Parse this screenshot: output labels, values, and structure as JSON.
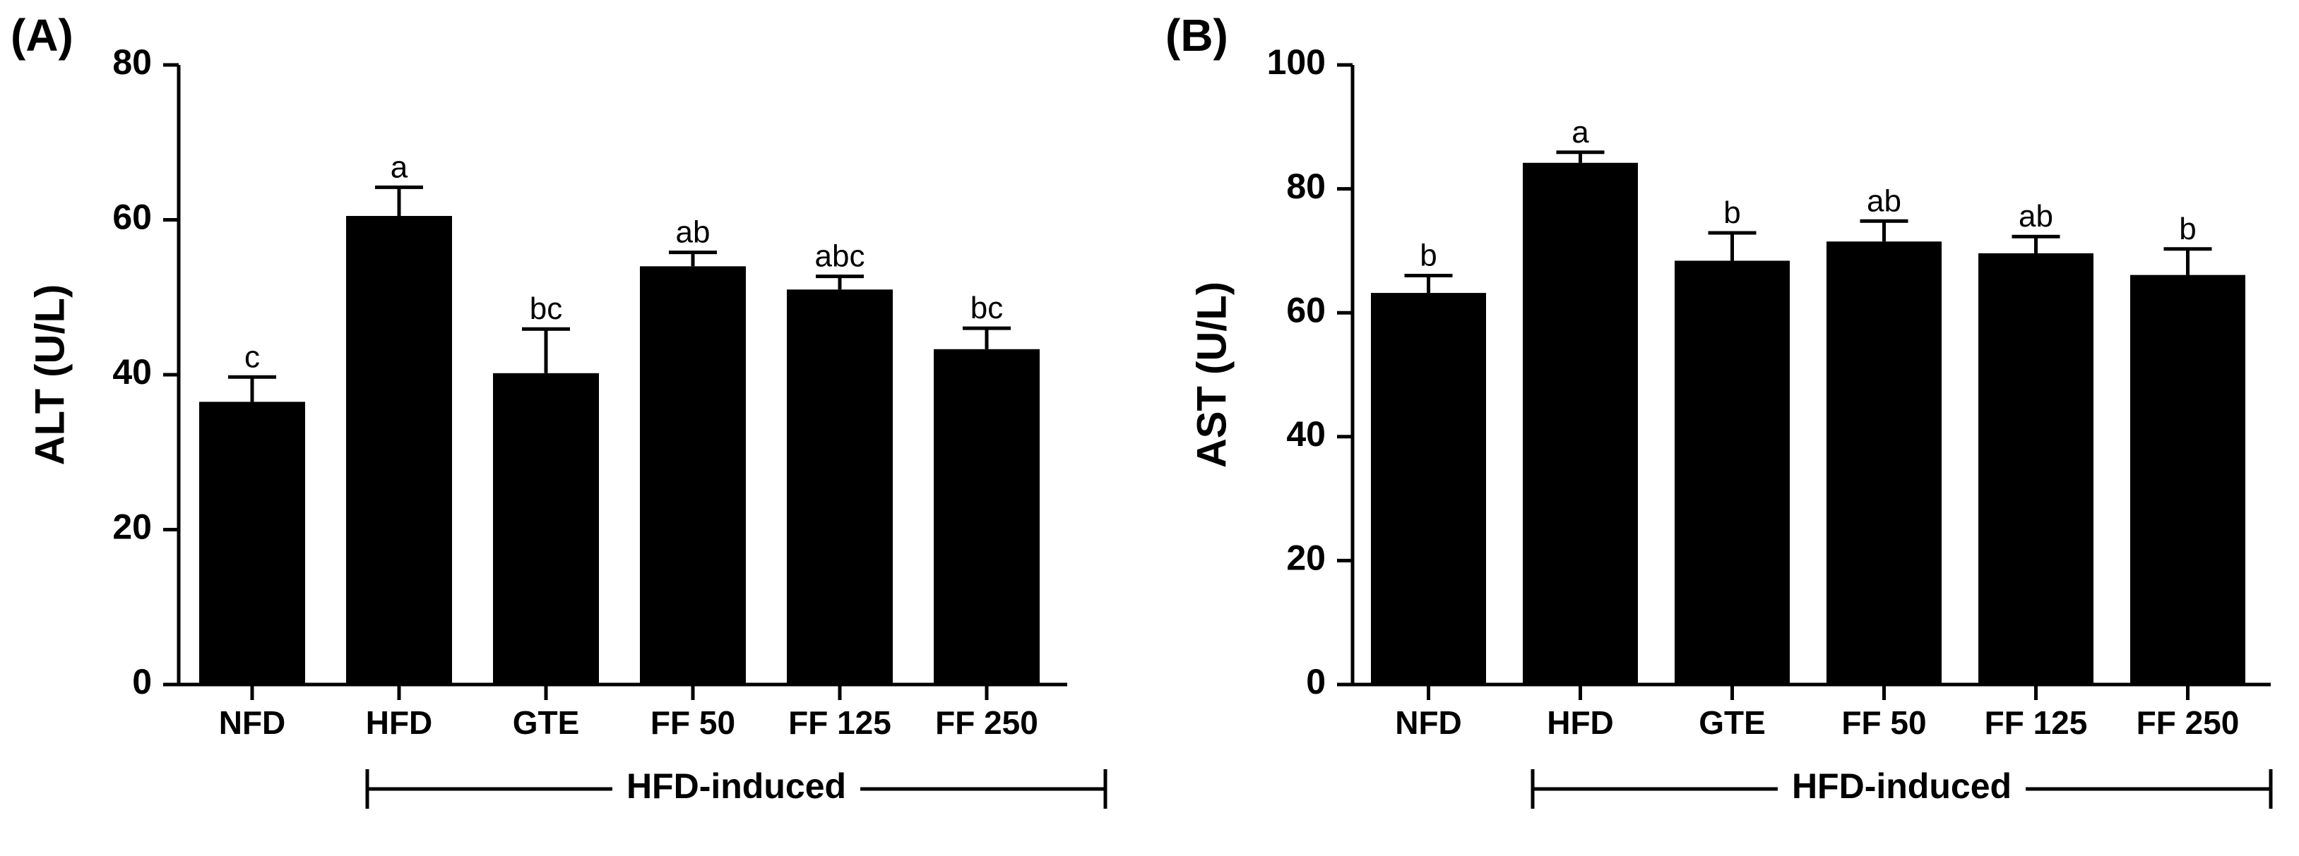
{
  "figure": {
    "panels": [
      {
        "panel_label": "(A)",
        "group_label": "HFD-induced"
      },
      {
        "panel_label": "(B)",
        "group_label": "HFD-induced"
      }
    ]
  },
  "chart_data": [
    {
      "type": "bar",
      "title": "",
      "xlabel": "",
      "ylabel": "ALT (U/L)",
      "ylim": [
        0,
        80
      ],
      "yticks": [
        0,
        20,
        40,
        60,
        80
      ],
      "categories": [
        "NFD",
        "HFD",
        "GTE",
        "FF 50",
        "FF 125",
        "FF 250"
      ],
      "values": [
        36.5,
        60.5,
        40.2,
        54.0,
        51.0,
        43.3
      ],
      "errors": [
        3.2,
        3.7,
        5.7,
        1.8,
        1.7,
        2.7
      ],
      "labels": [
        "c",
        "a",
        "bc",
        "ab",
        "abc",
        "bc"
      ],
      "bar_color": "#000000"
    },
    {
      "type": "bar",
      "title": "",
      "xlabel": "",
      "ylabel": "AST (U/L)",
      "ylim": [
        0,
        100
      ],
      "yticks": [
        0,
        20,
        40,
        60,
        80,
        100
      ],
      "categories": [
        "NFD",
        "HFD",
        "GTE",
        "FF 50",
        "FF 125",
        "FF 250"
      ],
      "values": [
        63.2,
        84.2,
        68.4,
        71.5,
        69.6,
        66.1
      ],
      "errors": [
        2.8,
        1.7,
        4.5,
        3.3,
        2.7,
        4.2
      ],
      "labels": [
        "b",
        "a",
        "b",
        "ab",
        "ab",
        "b"
      ],
      "bar_color": "#000000"
    }
  ]
}
